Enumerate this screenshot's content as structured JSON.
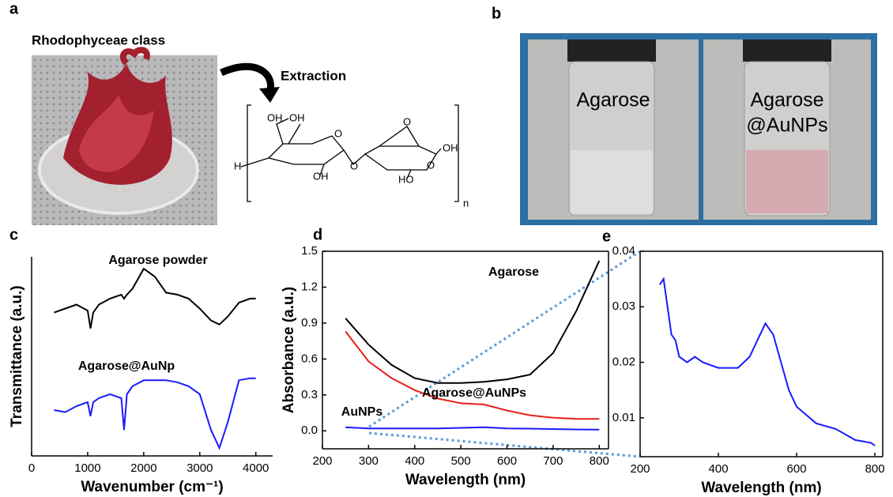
{
  "panel_labels": [
    "a",
    "b",
    "c",
    "d",
    "e"
  ],
  "panel_a": {
    "caption": "Rhodophyceae class",
    "arrow_label": "Extraction",
    "structure_labels": [
      "OH",
      "OH",
      "H",
      "O",
      "O",
      "OH",
      "O",
      "OH",
      "HO",
      "O",
      "n"
    ]
  },
  "panel_b": {
    "vials": [
      [
        "Agarose"
      ],
      [
        "Agarose",
        "@AuNPs"
      ]
    ]
  },
  "chart_data": [
    {
      "type": "line",
      "x_label": "Wavenumber (cm⁻¹)",
      "y_label": "Transmittance (a.u.)",
      "xlim": [
        0,
        4300
      ],
      "ylim": [
        0,
        1
      ],
      "xticks": [
        0,
        1000,
        2000,
        3000,
        4000
      ],
      "x": [
        400,
        600,
        800,
        1000,
        1050,
        1100,
        1200,
        1400,
        1600,
        1650,
        1700,
        1800,
        2000,
        2200,
        2400,
        2600,
        2800,
        3000,
        3200,
        3350,
        3500,
        3700,
        3900,
        4000
      ],
      "series": [
        {
          "name": "Agarose powder",
          "color": "#000000",
          "values": [
            0.72,
            0.74,
            0.76,
            0.73,
            0.64,
            0.72,
            0.76,
            0.79,
            0.81,
            0.79,
            0.81,
            0.84,
            0.94,
            0.9,
            0.82,
            0.81,
            0.79,
            0.74,
            0.68,
            0.66,
            0.7,
            0.77,
            0.79,
            0.79
          ]
        },
        {
          "name": "Agarose@AuNp",
          "color": "#1a1aff",
          "values": [
            0.23,
            0.22,
            0.25,
            0.27,
            0.2,
            0.27,
            0.29,
            0.31,
            0.29,
            0.13,
            0.31,
            0.35,
            0.38,
            0.38,
            0.38,
            0.37,
            0.35,
            0.31,
            0.13,
            0.04,
            0.17,
            0.38,
            0.39,
            0.39
          ]
        }
      ]
    },
    {
      "type": "line",
      "x_label": "Wavelength (nm)",
      "y_label": "Absorbance (a.u.)",
      "xlim": [
        200,
        820
      ],
      "ylim": [
        -0.15,
        1.5
      ],
      "xticks": [
        200,
        300,
        400,
        500,
        600,
        700,
        800
      ],
      "yticks": [
        {
          "value": 0,
          "label": "0.0"
        },
        0.3,
        0.6,
        0.9,
        1.2,
        1.5
      ],
      "x": [
        250,
        300,
        350,
        400,
        450,
        500,
        550,
        600,
        650,
        700,
        750,
        800
      ],
      "series": [
        {
          "name": "Agarose",
          "color": "#000000",
          "values": [
            0.94,
            0.72,
            0.55,
            0.44,
            0.4,
            0.4,
            0.41,
            0.43,
            0.47,
            0.65,
            1.0,
            1.42
          ]
        },
        {
          "name": "Agarose@AuNPs",
          "color": "#e8211d",
          "values": [
            0.83,
            0.58,
            0.44,
            0.34,
            0.27,
            0.23,
            0.22,
            0.17,
            0.13,
            0.11,
            0.1,
            0.1
          ]
        },
        {
          "name": "AuNPs",
          "color": "#1a1aff",
          "values": [
            0.03,
            0.02,
            0.02,
            0.02,
            0.02,
            0.025,
            0.03,
            0.02,
            0.018,
            0.015,
            0.012,
            0.01
          ]
        }
      ]
    },
    {
      "type": "line",
      "x_label": "Wavelength (nm)",
      "xlim": [
        200,
        820
      ],
      "ylim": [
        0.003,
        0.04
      ],
      "xticks": [
        200,
        400,
        600,
        800
      ],
      "yticks": [
        0.01,
        0.02,
        0.03,
        0.04
      ],
      "x": [
        250,
        260,
        270,
        280,
        290,
        300,
        320,
        340,
        360,
        400,
        450,
        480,
        500,
        520,
        540,
        560,
        580,
        600,
        650,
        700,
        750,
        790,
        800
      ],
      "series": [
        {
          "color": "#1a1aff",
          "values": [
            0.034,
            0.035,
            0.03,
            0.025,
            0.024,
            0.021,
            0.02,
            0.021,
            0.02,
            0.019,
            0.019,
            0.021,
            0.024,
            0.027,
            0.025,
            0.02,
            0.015,
            0.012,
            0.009,
            0.008,
            0.006,
            0.0055,
            0.005
          ]
        }
      ]
    }
  ]
}
